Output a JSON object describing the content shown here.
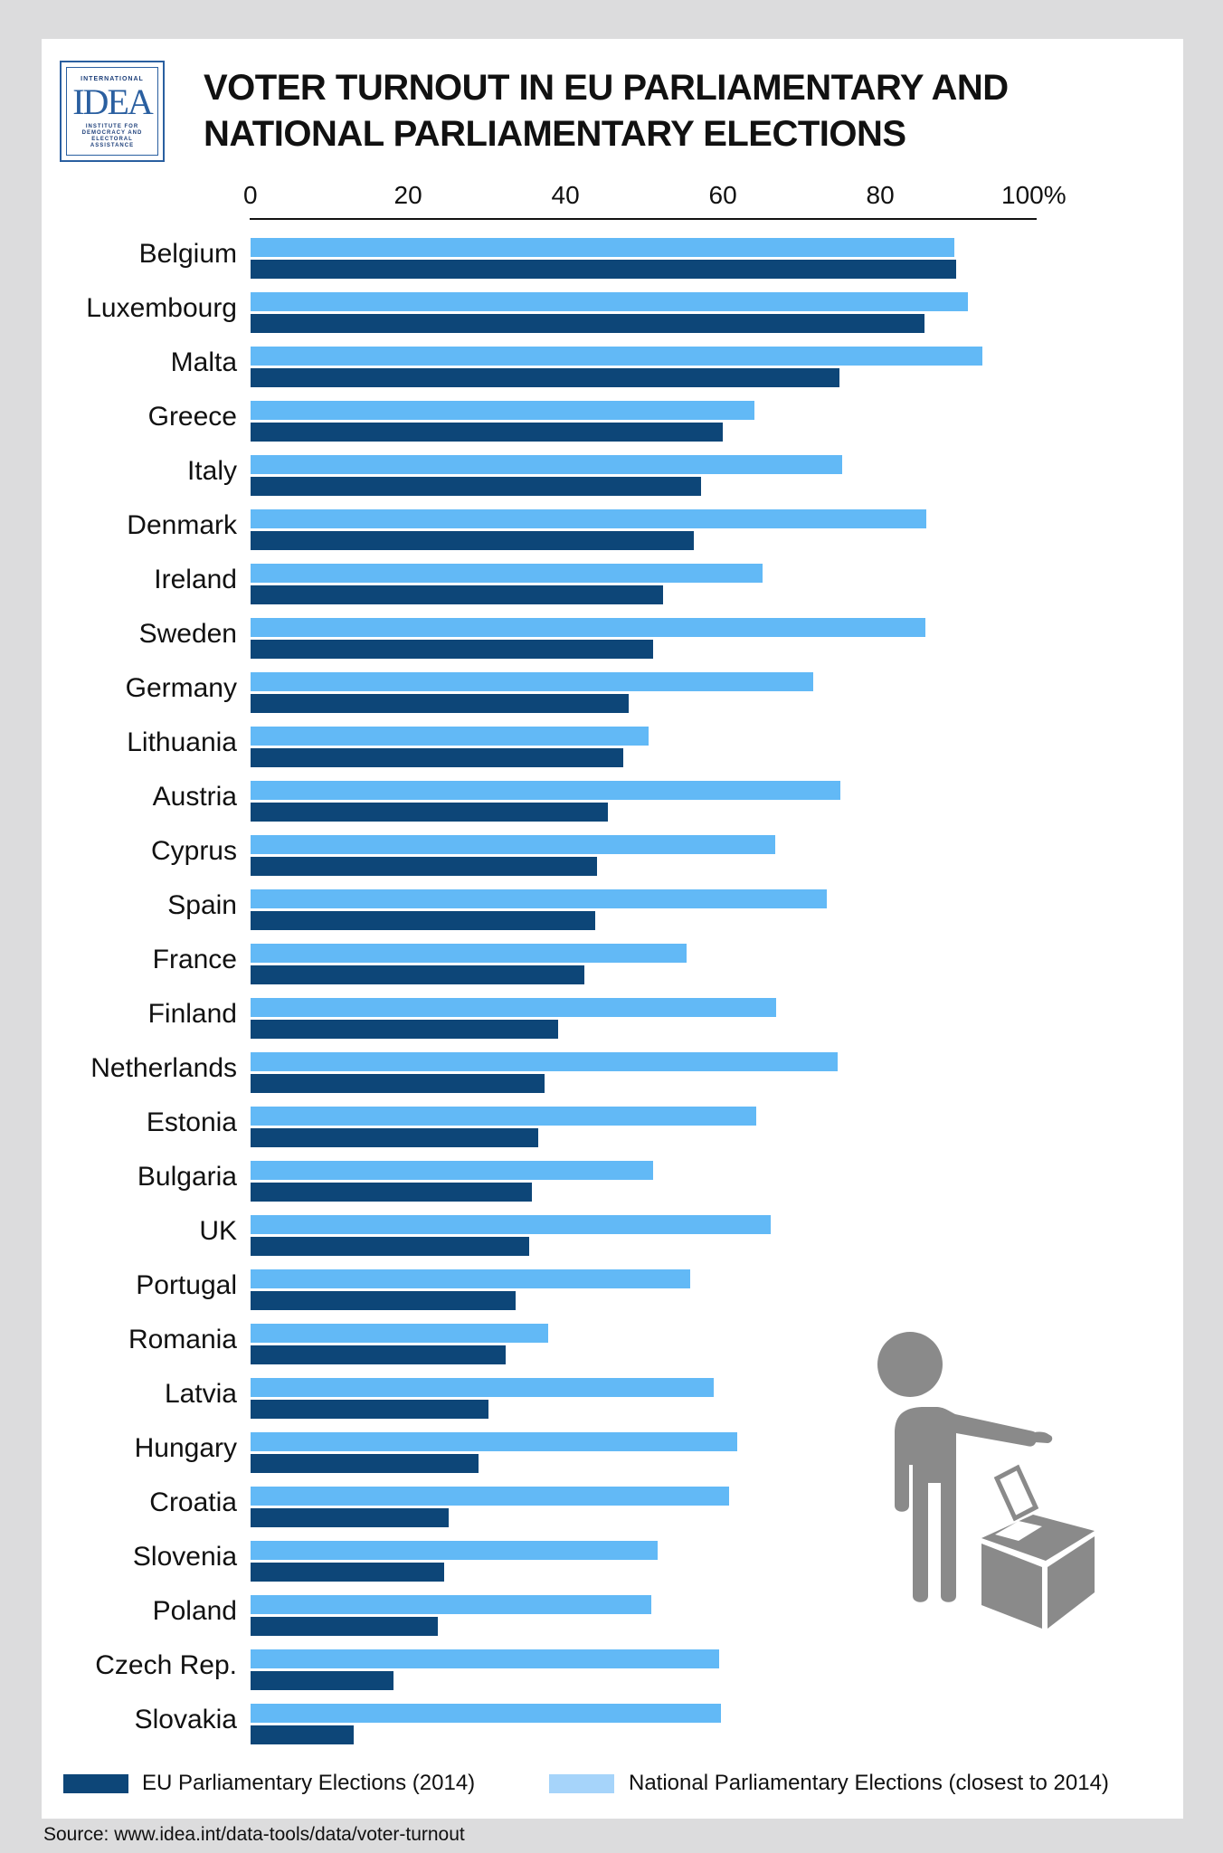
{
  "logo": {
    "top_text": "INTERNATIONAL",
    "main_text": "IDEA",
    "sub_lines": [
      "INSTITUTE FOR",
      "DEMOCRACY AND",
      "ELECTORAL",
      "ASSISTANCE"
    ]
  },
  "colors": {
    "national": "#62b9f6",
    "eu": "#0d4678",
    "national_legend": "#a6d4fa"
  },
  "source": "Source: www.idea.int/data-tools/data/voter-turnout",
  "icon_name": "voter-ballot-box-icon",
  "chart_data": {
    "type": "bar",
    "orientation": "horizontal",
    "title_lines": [
      "VOTER TURNOUT IN EU PARLIAMENTARY AND",
      "NATIONAL PARLIAMENTARY ELECTIONS"
    ],
    "x_ticks": [
      "0",
      "20",
      "40",
      "60",
      "80",
      "100%"
    ],
    "xlim": [
      0,
      100
    ],
    "categories": [
      "Belgium",
      "Luxembourg",
      "Malta",
      "Greece",
      "Italy",
      "Denmark",
      "Ireland",
      "Sweden",
      "Germany",
      "Lithuania",
      "Austria",
      "Cyprus",
      "Spain",
      "France",
      "Finland",
      "Netherlands",
      "Estonia",
      "Bulgaria",
      "UK",
      "Portugal",
      "Romania",
      "Latvia",
      "Hungary",
      "Croatia",
      "Slovenia",
      "Poland",
      "Czech Rep.",
      "Slovakia"
    ],
    "series": [
      {
        "name": "National Parliamentary Elections (closest to 2014)",
        "key": "nat",
        "values": [
          89.4,
          91.2,
          93.0,
          64.0,
          75.2,
          85.9,
          65.1,
          85.8,
          71.5,
          50.6,
          74.9,
          66.7,
          73.2,
          55.4,
          66.8,
          74.6,
          64.2,
          51.1,
          66.1,
          55.9,
          37.8,
          58.9,
          61.8,
          60.8,
          51.7,
          50.9,
          59.5,
          59.8
        ]
      },
      {
        "name": "EU Parliamentary Elections (2014)",
        "key": "eu",
        "values": [
          89.6,
          85.6,
          74.8,
          60.0,
          57.2,
          56.3,
          52.4,
          51.1,
          48.1,
          47.4,
          45.4,
          44.0,
          43.8,
          42.4,
          39.1,
          37.3,
          36.5,
          35.8,
          35.4,
          33.7,
          32.4,
          30.2,
          29.0,
          25.2,
          24.6,
          23.8,
          18.2,
          13.1
        ]
      }
    ]
  }
}
